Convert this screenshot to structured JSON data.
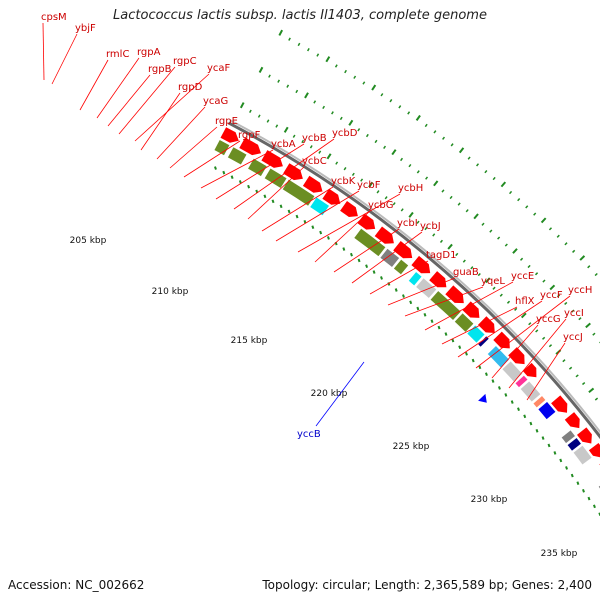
{
  "title": "Lactococcus lactis subsp. lactis Il1403, complete genome",
  "footer": {
    "accession": "Accession: NC_002662",
    "summary": "Topology: circular; Length: 2,365,589 bp; Genes: 2,400"
  },
  "colors": {
    "forward_gene": "#ff0000",
    "reverse_gene": "#0000ff",
    "label_forward": "#cc0000",
    "label_reverse": "#0000cc",
    "cog_olive": "#6b8e23",
    "cog_grey": "#808080",
    "cog_lightgrey": "#c8c8c8",
    "cog_cyan": "#00e5ee",
    "cog_skyblue": "#33bbee",
    "cog_navy": "#000080",
    "cog_blue": "#0000ee",
    "cog_magenta": "#ff3399",
    "cog_salmon": "#ff8866",
    "tick": "#228b22",
    "backbone": "#999999"
  },
  "kbp_labels": [
    "205 kbp",
    "210 kbp",
    "215 kbp",
    "220 kbp",
    "225 kbp",
    "230 kbp",
    "235 kbp"
  ],
  "gene_labels": [
    {
      "name": "cpsM",
      "strand": "+"
    },
    {
      "name": "ybjF",
      "strand": "+"
    },
    {
      "name": "rmlC",
      "strand": "+"
    },
    {
      "name": "rgpA",
      "strand": "+"
    },
    {
      "name": "rgpB",
      "strand": "+"
    },
    {
      "name": "rgpC",
      "strand": "+"
    },
    {
      "name": "ycaF",
      "strand": "+"
    },
    {
      "name": "rgpD",
      "strand": "+"
    },
    {
      "name": "ycaG",
      "strand": "+"
    },
    {
      "name": "rgpE",
      "strand": "+"
    },
    {
      "name": "rgpF",
      "strand": "+"
    },
    {
      "name": "ycbA",
      "strand": "+"
    },
    {
      "name": "ycbB",
      "strand": "+"
    },
    {
      "name": "ycbD",
      "strand": "+"
    },
    {
      "name": "ycbC",
      "strand": "+"
    },
    {
      "name": "ycbK",
      "strand": "+"
    },
    {
      "name": "ycbF",
      "strand": "+"
    },
    {
      "name": "ycbH",
      "strand": "+"
    },
    {
      "name": "ycbG",
      "strand": "+"
    },
    {
      "name": "ycbI",
      "strand": "+"
    },
    {
      "name": "ycbJ",
      "strand": "+"
    },
    {
      "name": "tagD1",
      "strand": "+"
    },
    {
      "name": "guaB",
      "strand": "+"
    },
    {
      "name": "yqeL",
      "strand": "+"
    },
    {
      "name": "yccE",
      "strand": "+"
    },
    {
      "name": "hflX",
      "strand": "+"
    },
    {
      "name": "yccF",
      "strand": "+"
    },
    {
      "name": "yccH",
      "strand": "+"
    },
    {
      "name": "yccG",
      "strand": "+"
    },
    {
      "name": "yccI",
      "strand": "+"
    },
    {
      "name": "yccJ",
      "strand": "+"
    },
    {
      "name": "yccB",
      "strand": "-"
    }
  ]
}
